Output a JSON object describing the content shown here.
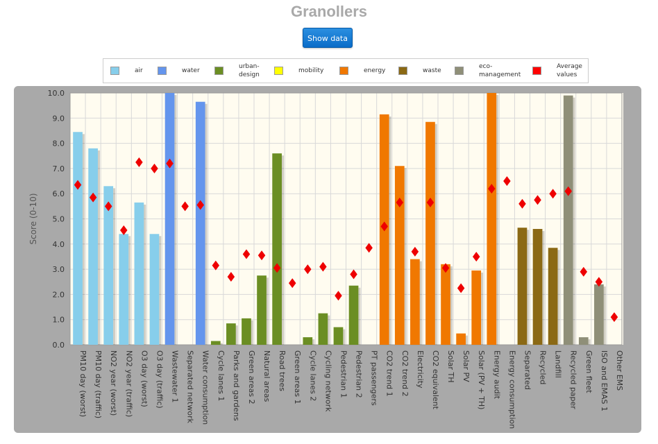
{
  "page": {
    "title": "Granollers",
    "show_data_label": "Show data"
  },
  "legend": [
    {
      "label": "air",
      "color": "#87ceeb"
    },
    {
      "label": "water",
      "color": "#6495ed"
    },
    {
      "label": "urban-design",
      "color": "#6b8e23"
    },
    {
      "label": "mobility",
      "color": "#ffff00"
    },
    {
      "label": "energy",
      "color": "#f07800"
    },
    {
      "label": "waste",
      "color": "#8b6914"
    },
    {
      "label": "eco-management",
      "color": "#8f8f78"
    },
    {
      "label": "Average values",
      "color": "#ff0000"
    }
  ],
  "chart_data": {
    "type": "bar",
    "ylabel": "Score (0-10)",
    "ylim": [
      0,
      10
    ],
    "yticks": [
      "0.0",
      "1.0",
      "2.0",
      "3.0",
      "4.0",
      "5.0",
      "6.0",
      "7.0",
      "8.0",
      "9.0",
      "10.0"
    ],
    "grid": true,
    "categories": [
      "PM10 day (worst)",
      "PM10 day (traffic)",
      "NO2 year (worst)",
      "NO2 year (traffic)",
      "O3 day (worst)",
      "O3 day (traffic)",
      "Wastewater 1",
      "Separated network",
      "Water consumption",
      "Cycle lanes 1",
      "Parks and gardens",
      "Green areas 2",
      "Natural areas",
      "Road trees",
      "Green areas 1",
      "Cycle lanes 2",
      "Cycling network",
      "Pedestrian 1",
      "Pedestrian 2",
      "PT passengers",
      "CO2 trend 1",
      "CO2 trend 2",
      "Electricity",
      "CO2 equivalent",
      "Solar TH",
      "Solar PV",
      "Solar (PV + TH)",
      "Energy audit",
      "Energy consumption",
      "Separated",
      "Recycled",
      "Landfill",
      "Recycled paper",
      "Green fleet",
      "ISO and EMAS 1",
      "Other EMS"
    ],
    "groups": [
      "air",
      "air",
      "air",
      "air",
      "air",
      "air",
      "water",
      "water",
      "water",
      "urban-design",
      "urban-design",
      "urban-design",
      "urban-design",
      "urban-design",
      "urban-design",
      "urban-design",
      "urban-design",
      "urban-design",
      "urban-design",
      "mobility",
      "energy",
      "energy",
      "energy",
      "energy",
      "energy",
      "energy",
      "energy",
      "energy",
      "energy",
      "waste",
      "waste",
      "waste",
      "eco-management",
      "eco-management",
      "eco-management",
      "eco-management"
    ],
    "series": [
      {
        "name": "Score",
        "values": [
          8.45,
          7.8,
          6.3,
          4.4,
          5.65,
          4.4,
          10.0,
          0,
          9.65,
          0.15,
          0.85,
          1.05,
          2.75,
          7.6,
          0,
          0.3,
          1.25,
          0.7,
          2.35,
          0,
          9.15,
          7.1,
          3.4,
          8.85,
          3.2,
          0.45,
          2.95,
          10.0,
          0,
          4.65,
          4.6,
          3.85,
          9.9,
          0.3,
          2.4,
          0
        ]
      },
      {
        "name": "Average values",
        "values": [
          6.35,
          5.85,
          5.5,
          4.55,
          7.25,
          7.0,
          7.2,
          5.5,
          5.55,
          3.15,
          2.7,
          3.6,
          3.55,
          3.05,
          2.45,
          3.0,
          3.1,
          1.95,
          2.8,
          3.85,
          4.7,
          5.65,
          3.7,
          5.65,
          3.05,
          2.25,
          3.5,
          6.2,
          6.5,
          5.6,
          5.75,
          6.0,
          6.1,
          2.9,
          2.5,
          1.1
        ]
      }
    ]
  }
}
